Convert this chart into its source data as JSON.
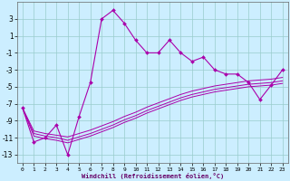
{
  "xlabel": "Windchill (Refroidissement éolien,°C)",
  "x": [
    0,
    1,
    2,
    3,
    4,
    5,
    6,
    7,
    8,
    9,
    10,
    11,
    12,
    13,
    14,
    15,
    16,
    17,
    18,
    19,
    20,
    21,
    22,
    23
  ],
  "y_main": [
    -7.5,
    -11.5,
    -11.0,
    -9.5,
    -13.0,
    -8.5,
    -4.5,
    3.0,
    4.0,
    2.5,
    0.5,
    -1.0,
    -1.0,
    0.5,
    -1.0,
    -2.0,
    -1.5,
    -3.0,
    -3.5,
    -3.5,
    -4.5,
    -6.5,
    -4.8,
    -3.0
  ],
  "y_line1": [
    -7.5,
    -10.2,
    -10.5,
    -10.7,
    -10.9,
    -10.5,
    -10.1,
    -9.6,
    -9.1,
    -8.5,
    -8.0,
    -7.4,
    -6.9,
    -6.4,
    -5.9,
    -5.5,
    -5.2,
    -4.9,
    -4.7,
    -4.5,
    -4.3,
    -4.2,
    -4.1,
    -3.9
  ],
  "y_line2": [
    -7.5,
    -10.5,
    -10.8,
    -11.0,
    -11.3,
    -10.9,
    -10.5,
    -10.0,
    -9.5,
    -8.9,
    -8.4,
    -7.8,
    -7.3,
    -6.8,
    -6.3,
    -5.9,
    -5.6,
    -5.3,
    -5.1,
    -4.9,
    -4.7,
    -4.6,
    -4.5,
    -4.3
  ],
  "y_line3": [
    -7.5,
    -10.8,
    -11.1,
    -11.3,
    -11.6,
    -11.2,
    -10.8,
    -10.3,
    -9.8,
    -9.2,
    -8.7,
    -8.1,
    -7.6,
    -7.1,
    -6.6,
    -6.2,
    -5.9,
    -5.6,
    -5.4,
    -5.2,
    -5.0,
    -4.9,
    -4.8,
    -4.6
  ],
  "line_color": "#aa00aa",
  "bg_color": "#cceeff",
  "grid_color": "#99cccc",
  "ylim": [
    -14,
    5
  ],
  "yticks": [
    -13,
    -11,
    -9,
    -7,
    -5,
    -3,
    -1,
    1,
    3
  ],
  "xlim": [
    -0.5,
    23.5
  ],
  "xticks": [
    0,
    1,
    2,
    3,
    4,
    5,
    6,
    7,
    8,
    9,
    10,
    11,
    12,
    13,
    14,
    15,
    16,
    17,
    18,
    19,
    20,
    21,
    22,
    23
  ]
}
